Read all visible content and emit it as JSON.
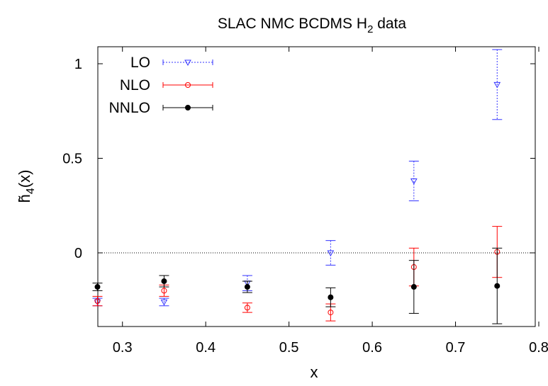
{
  "chart_data": {
    "type": "scatter",
    "title": "SLAC NMC BCDMS H",
    "title_subscript": "2",
    "title_suffix": " data",
    "xlabel": "x",
    "ylabel": "h̃",
    "ylabel_subscript": "4",
    "ylabel_suffix": "(x)",
    "xlim": [
      0.25,
      0.8
    ],
    "ylim": [
      -0.38,
      1.1
    ],
    "xticks": [
      0.3,
      0.4,
      0.5,
      0.6,
      0.7,
      0.8
    ],
    "xtick_labels": [
      "0.3",
      "0.4",
      "0.5",
      "0.6",
      "0.7",
      "0.8"
    ],
    "yticks": [
      0,
      0.5,
      1
    ],
    "ytick_labels": [
      "0",
      "0.5",
      "1"
    ],
    "reference_line_y": 0,
    "legend_position": "top-left",
    "grid": false,
    "series": [
      {
        "name": "LO",
        "color": "#3333ff",
        "marker": "triangle-down",
        "line_style": "dotted",
        "points": [
          {
            "x": 0.27,
            "y": -0.26,
            "err": 0.02
          },
          {
            "x": 0.35,
            "y": -0.26,
            "err": 0.02
          },
          {
            "x": 0.45,
            "y": -0.16,
            "err": 0.04
          },
          {
            "x": 0.55,
            "y": 0.0,
            "err": 0.065
          },
          {
            "x": 0.65,
            "y": 0.38,
            "err": 0.105
          },
          {
            "x": 0.75,
            "y": 0.89,
            "err": 0.185
          }
        ]
      },
      {
        "name": "NLO",
        "color": "#ff0000",
        "marker": "circle-open",
        "line_style": "solid",
        "points": [
          {
            "x": 0.27,
            "y": -0.255,
            "err": 0.025
          },
          {
            "x": 0.35,
            "y": -0.2,
            "err": 0.03
          },
          {
            "x": 0.45,
            "y": -0.29,
            "err": 0.025
          },
          {
            "x": 0.55,
            "y": -0.315,
            "err": 0.045
          },
          {
            "x": 0.65,
            "y": -0.075,
            "err": 0.1
          },
          {
            "x": 0.75,
            "y": 0.005,
            "err": 0.135
          }
        ]
      },
      {
        "name": "NNLO",
        "color": "#000000",
        "marker": "circle-filled",
        "line_style": "solid",
        "points": [
          {
            "x": 0.27,
            "y": -0.18,
            "err": 0.02
          },
          {
            "x": 0.35,
            "y": -0.15,
            "err": 0.03
          },
          {
            "x": 0.45,
            "y": -0.18,
            "err": 0.03
          },
          {
            "x": 0.55,
            "y": -0.235,
            "err": 0.05
          },
          {
            "x": 0.65,
            "y": -0.18,
            "err": 0.14
          },
          {
            "x": 0.75,
            "y": -0.175,
            "err": 0.2
          }
        ]
      }
    ]
  }
}
